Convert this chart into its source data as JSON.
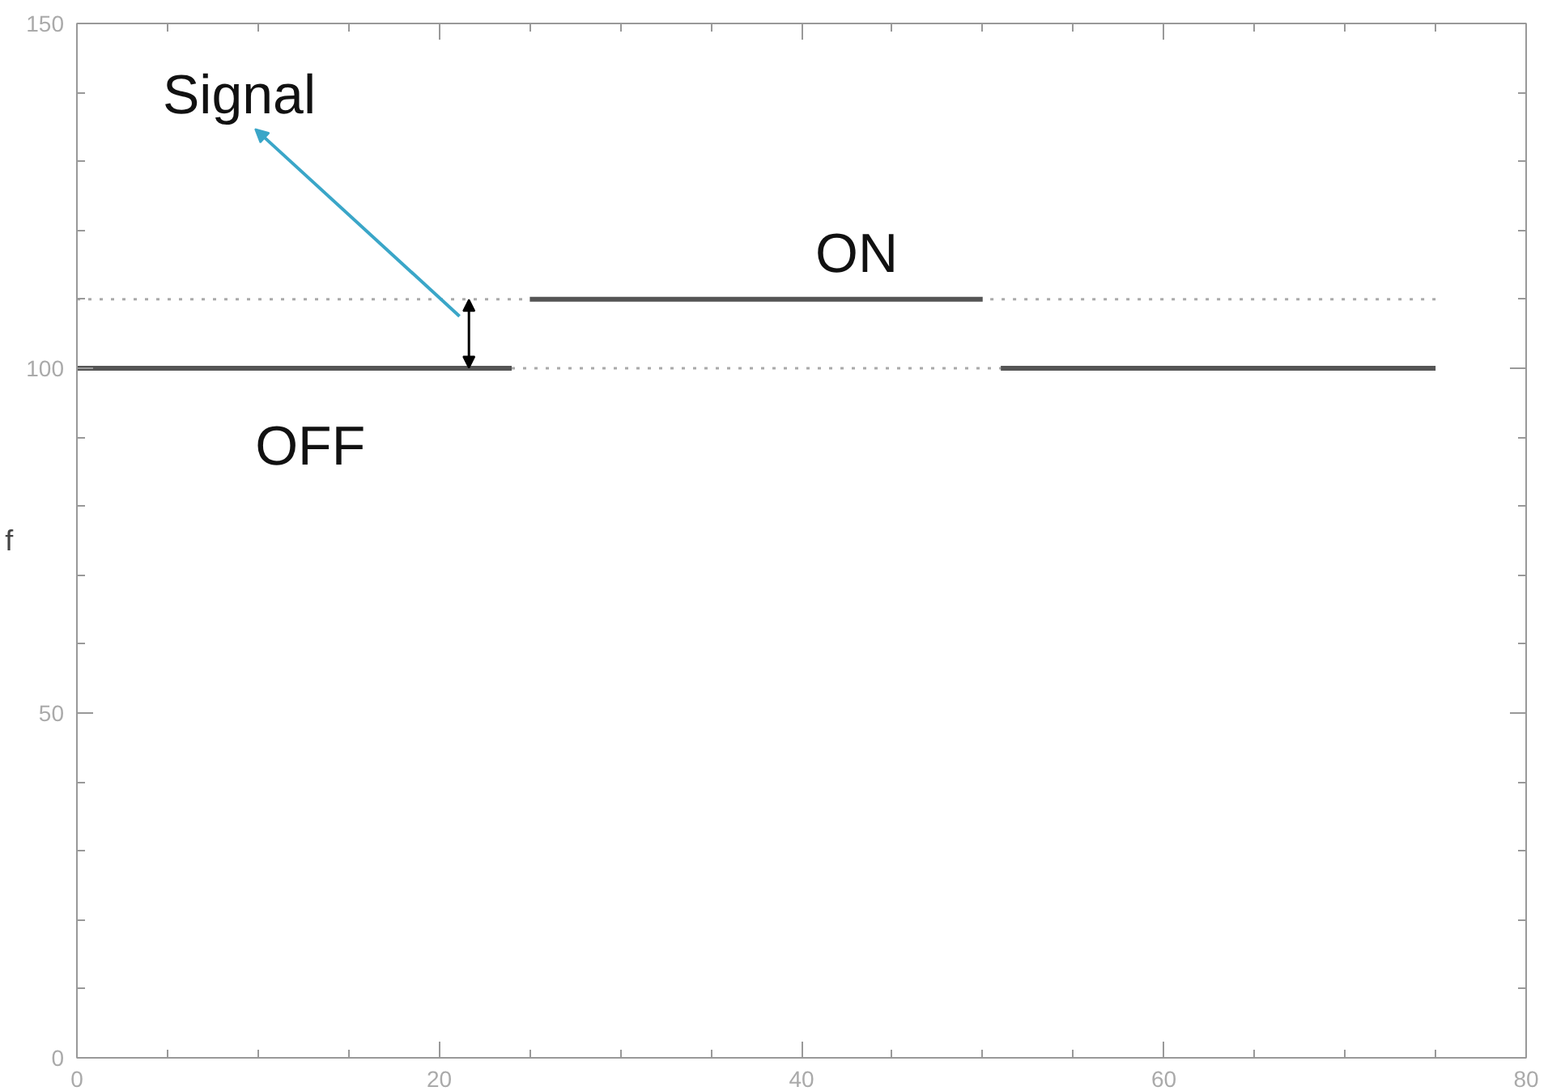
{
  "chart_data": {
    "type": "line",
    "ylabel": "f",
    "xlim": [
      0,
      80
    ],
    "xticks": [
      0,
      20,
      40,
      60,
      80
    ],
    "ylim": [
      0,
      150
    ],
    "yticks": [
      0,
      50,
      100,
      150
    ],
    "grid": false,
    "series": [
      {
        "color": "#aaaaaa",
        "line_style": "dotted",
        "x": [
          0,
          25
        ],
        "values": [
          110,
          110
        ]
      },
      {
        "color": "#aaaaaa",
        "line_style": "dotted",
        "x": [
          75,
          50
        ],
        "values": [
          110,
          110
        ]
      },
      {
        "color": "#aaaaaa",
        "line_style": "dotted",
        "x": [
          24,
          51
        ],
        "values": [
          100,
          100
        ]
      },
      {
        "color": "#555555",
        "line_style": "solid",
        "x": [
          0,
          24
        ],
        "values": [
          100,
          100
        ]
      },
      {
        "color": "#555555",
        "line_style": "solid",
        "x": [
          51,
          75
        ],
        "values": [
          100,
          100
        ]
      },
      {
        "color": "#555555",
        "line_style": "solid",
        "x": [
          25,
          50
        ],
        "values": [
          110,
          110
        ]
      }
    ],
    "annotations": [
      "Signal",
      "ON",
      "OFF"
    ]
  }
}
